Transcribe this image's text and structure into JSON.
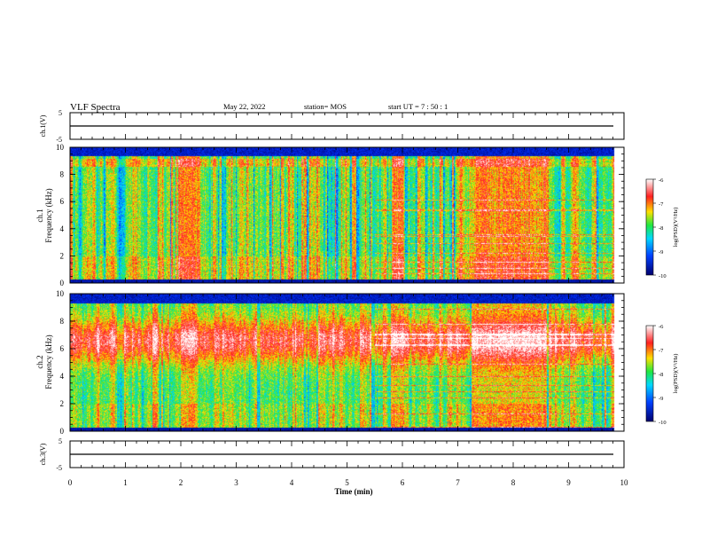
{
  "header": {
    "title": "VLF Spectra",
    "date": "May 22, 2022",
    "station": "station= MOS",
    "start_ut": "start  UT  =   7 : 50 : 1"
  },
  "chart_data": [
    {
      "type": "line",
      "panel": "ch1-voltage",
      "ylabel": "ch.1(V)",
      "ylim": [
        -5,
        5
      ],
      "y_ticks": [
        "5",
        "-5"
      ],
      "series": [
        {
          "values": [
            {
              "x": 0,
              "y": 0
            },
            {
              "x": 9.8,
              "y": 0
            }
          ]
        }
      ]
    },
    {
      "type": "heatmap",
      "panel": "ch1-spectrogram",
      "ylabel": "ch.1\nFrequency (kHz)",
      "ylabel_parts": [
        "ch.1",
        "Frequency (kHz)"
      ],
      "ylim": [
        0,
        10
      ],
      "y_ticks": [
        "0",
        "2",
        "4",
        "6",
        "8",
        "10"
      ],
      "x_range_min": [
        0,
        9.8
      ],
      "colorbar": {
        "label": "log(PSD)(V²/Hz)",
        "min": -10,
        "max": -6,
        "ticks": [
          "-6",
          "-7",
          "-8",
          "-9",
          "-10"
        ]
      },
      "dominant_band_khz": "broadband 0-9, quiet above 9.3",
      "bright_intervals_min": [
        [
          2.0,
          2.3
        ],
        [
          5.8,
          6.0
        ],
        [
          7.3,
          8.6
        ]
      ]
    },
    {
      "type": "heatmap",
      "panel": "ch2-spectrogram",
      "ylabel": "ch.2\nFrequency (kHz)",
      "ylabel_parts": [
        "ch.2",
        "Frequency (kHz)"
      ],
      "ylim": [
        0,
        10
      ],
      "y_ticks": [
        "0",
        "2",
        "4",
        "6",
        "8",
        "10"
      ],
      "x_range_min": [
        0,
        9.8
      ],
      "colorbar": {
        "label": "log(PSD)(V²/Hz)",
        "min": -10,
        "max": -6,
        "ticks": [
          "-6",
          "-7",
          "-8",
          "-9",
          "-10"
        ]
      },
      "dominant_band_khz": "strong 5-8, quiet above 9.3",
      "bright_intervals_min": [
        [
          2.0,
          2.3
        ],
        [
          5.8,
          6.0
        ],
        [
          7.3,
          8.6
        ]
      ]
    },
    {
      "type": "line",
      "panel": "ch3-voltage",
      "ylabel": "ch.3(V)",
      "ylim": [
        -5,
        5
      ],
      "y_ticks": [
        "5",
        "-5"
      ],
      "series": [
        {
          "values": [
            {
              "x": 0,
              "y": 0
            },
            {
              "x": 9.8,
              "y": 0
            }
          ]
        }
      ]
    }
  ],
  "x_axis": {
    "label": "Time  (min)",
    "ticks": [
      "0",
      "1",
      "2",
      "3",
      "4",
      "5",
      "6",
      "7",
      "8",
      "9",
      "10"
    ],
    "xlim": [
      0,
      10
    ]
  },
  "colors": {
    "low": "#000080",
    "mid_low": "#00c8ff",
    "mid": "#2ee84a",
    "mid_high": "#ffd400",
    "high": "#ff1a1a",
    "top": "#ffffff"
  }
}
